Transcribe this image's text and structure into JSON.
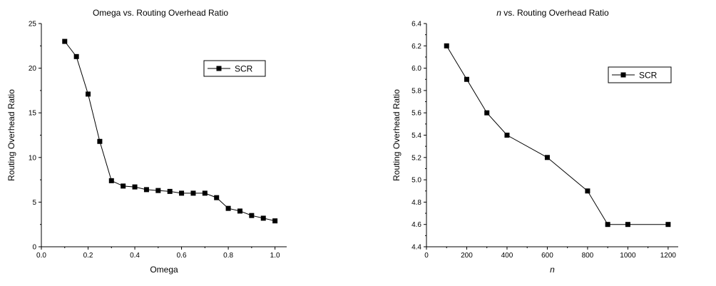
{
  "chart_data": [
    {
      "type": "line",
      "title": "Omega vs. Routing Overhead Ratio",
      "title_parts": [
        {
          "text": "Omega vs. Routing Overhead Ratio",
          "italic": false
        }
      ],
      "xlabel": "Omega",
      "xlabel_italic": false,
      "ylabel": "Routing Overhead Ratio",
      "xlim": [
        0,
        1.05
      ],
      "ylim": [
        0,
        25
      ],
      "xticks": [
        0.0,
        0.2,
        0.4,
        0.6,
        0.8,
        1.0
      ],
      "xtick_labels": [
        "0.0",
        "0.2",
        "0.4",
        "0.6",
        "0.8",
        "1.0"
      ],
      "yticks": [
        0,
        5,
        10,
        15,
        20,
        25
      ],
      "ytick_labels": [
        "0",
        "5",
        "10",
        "15",
        "20",
        "25"
      ],
      "grid": false,
      "legend": {
        "position": "top-right",
        "entries": [
          "SCR"
        ]
      },
      "series": [
        {
          "name": "SCR",
          "marker": "square",
          "x": [
            0.1,
            0.15,
            0.2,
            0.25,
            0.3,
            0.35,
            0.4,
            0.45,
            0.5,
            0.55,
            0.6,
            0.65,
            0.7,
            0.75,
            0.8,
            0.85,
            0.9,
            0.95,
            1.0
          ],
          "y": [
            23.0,
            21.3,
            17.1,
            11.8,
            7.4,
            6.8,
            6.7,
            6.4,
            6.3,
            6.2,
            6.0,
            6.0,
            6.0,
            5.5,
            4.3,
            4.0,
            3.5,
            3.2,
            2.9
          ]
        }
      ]
    },
    {
      "type": "line",
      "title": "n vs. Routing Overhead Ratio",
      "title_parts": [
        {
          "text": "n",
          "italic": true
        },
        {
          "text": " vs. Routing Overhead Ratio",
          "italic": false
        }
      ],
      "xlabel": "n",
      "xlabel_italic": true,
      "ylabel": "Routing Overhead Ratio",
      "xlim": [
        0,
        1250
      ],
      "ylim": [
        4.4,
        6.4
      ],
      "xticks": [
        0,
        200,
        400,
        600,
        800,
        1000,
        1200
      ],
      "xtick_labels": [
        "0",
        "200",
        "400",
        "600",
        "800",
        "1000",
        "1200"
      ],
      "yticks": [
        4.4,
        4.6,
        4.8,
        5.0,
        5.2,
        5.4,
        5.6,
        5.8,
        6.0,
        6.2,
        6.4
      ],
      "ytick_labels": [
        "4.4",
        "4.6",
        "4.8",
        "5.0",
        "5.2",
        "5.4",
        "5.6",
        "5.8",
        "6.0",
        "6.2",
        "6.4"
      ],
      "grid": false,
      "legend": {
        "position": "top-right",
        "entries": [
          "SCR"
        ]
      },
      "series": [
        {
          "name": "SCR",
          "marker": "square",
          "x": [
            100,
            200,
            300,
            400,
            600,
            800,
            900,
            1000,
            1200
          ],
          "y": [
            6.2,
            5.9,
            5.6,
            5.4,
            5.2,
            4.9,
            4.6,
            4.6,
            4.6
          ]
        }
      ]
    }
  ]
}
